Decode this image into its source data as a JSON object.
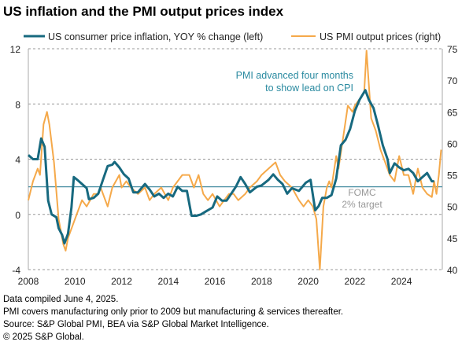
{
  "chart_data": {
    "type": "line",
    "title": "US inflation and the PMI output prices index",
    "xlim": [
      2008,
      2025.75
    ],
    "x_ticks": [
      "2008",
      "2010",
      "2012",
      "2014",
      "2016",
      "2018",
      "2020",
      "2022",
      "2024"
    ],
    "y_left": {
      "lim": [
        -4,
        12
      ],
      "ticks": [
        "-4",
        "0",
        "4",
        "8",
        "12"
      ]
    },
    "y_right": {
      "lim": [
        40,
        75
      ],
      "ticks": [
        "40",
        "45",
        "50",
        "55",
        "60",
        "65",
        "70",
        "75"
      ]
    },
    "grid": "horizontal dashed",
    "legend_position": "top",
    "series": [
      {
        "name": "US consumer price inflation, YOY % change (left)",
        "axis": "left",
        "color": "#17697f",
        "x": [
          2008.0,
          2008.2,
          2008.4,
          2008.55,
          2008.7,
          2008.85,
          2009.0,
          2009.2,
          2009.3,
          2009.45,
          2009.55,
          2009.7,
          2009.85,
          2009.95,
          2010.1,
          2010.3,
          2010.5,
          2010.6,
          2010.8,
          2011.0,
          2011.2,
          2011.4,
          2011.6,
          2011.7,
          2011.9,
          2012.1,
          2012.3,
          2012.5,
          2012.7,
          2012.9,
          2013.0,
          2013.2,
          2013.4,
          2013.6,
          2013.8,
          2014.0,
          2014.2,
          2014.4,
          2014.6,
          2014.8,
          2015.0,
          2015.2,
          2015.4,
          2015.6,
          2015.9,
          2016.1,
          2016.3,
          2016.5,
          2016.7,
          2016.9,
          2017.1,
          2017.3,
          2017.5,
          2017.8,
          2018.0,
          2018.3,
          2018.5,
          2018.7,
          2018.9,
          2019.1,
          2019.3,
          2019.6,
          2019.9,
          2020.1,
          2020.3,
          2020.45,
          2020.6,
          2020.8,
          2021.0,
          2021.2,
          2021.4,
          2021.6,
          2021.8,
          2022.0,
          2022.2,
          2022.45,
          2022.6,
          2022.8,
          2023.0,
          2023.2,
          2023.4,
          2023.5,
          2023.7,
          2023.9,
          2024.1,
          2024.3,
          2024.5,
          2024.7,
          2024.9,
          2025.1,
          2025.3,
          2025.4
        ],
        "y": [
          4.3,
          4.0,
          4.0,
          5.5,
          4.9,
          1.0,
          0.0,
          -0.2,
          -1.0,
          -1.5,
          -2.1,
          -1.4,
          0.5,
          2.7,
          2.5,
          2.2,
          1.9,
          1.1,
          1.2,
          1.5,
          2.5,
          3.5,
          3.6,
          3.8,
          3.4,
          2.9,
          2.6,
          1.6,
          1.6,
          2.0,
          2.2,
          1.8,
          1.3,
          1.5,
          1.2,
          1.5,
          1.3,
          2.0,
          1.7,
          1.7,
          -0.1,
          -0.1,
          0.0,
          0.2,
          0.5,
          1.3,
          1.0,
          1.0,
          1.5,
          2.0,
          2.7,
          2.2,
          1.6,
          2.0,
          2.1,
          2.5,
          2.9,
          2.5,
          2.2,
          1.5,
          1.9,
          1.7,
          2.3,
          2.5,
          0.3,
          0.6,
          1.2,
          1.2,
          1.4,
          2.6,
          5.0,
          5.4,
          6.2,
          7.5,
          8.3,
          9.0,
          8.3,
          7.7,
          6.4,
          5.0,
          4.0,
          3.0,
          3.7,
          3.4,
          3.2,
          3.3,
          3.0,
          2.4,
          2.7,
          3.0,
          2.4,
          2.4
        ]
      },
      {
        "name": "US PMI output prices (right)",
        "axis": "right",
        "color": "#f5a94a",
        "x": [
          2008.0,
          2008.2,
          2008.4,
          2008.5,
          2008.65,
          2008.8,
          2008.9,
          2009.1,
          2009.3,
          2009.5,
          2009.6,
          2009.7,
          2009.9,
          2010.1,
          2010.3,
          2010.5,
          2010.8,
          2011.0,
          2011.1,
          2011.3,
          2011.4,
          2011.6,
          2011.9,
          2012.0,
          2012.2,
          2012.4,
          2012.7,
          2013.0,
          2013.2,
          2013.4,
          2013.7,
          2014.0,
          2014.2,
          2014.4,
          2014.6,
          2014.9,
          2015.1,
          2015.3,
          2015.5,
          2015.7,
          2015.9,
          2016.2,
          2016.4,
          2016.6,
          2016.8,
          2017.0,
          2017.3,
          2017.5,
          2017.8,
          2018.0,
          2018.3,
          2018.6,
          2018.8,
          2019.0,
          2019.3,
          2019.6,
          2019.8,
          2020.0,
          2020.2,
          2020.35,
          2020.5,
          2020.65,
          2020.8,
          2020.9,
          2021.0,
          2021.2,
          2021.3,
          2021.5,
          2021.7,
          2021.9,
          2022.0,
          2022.2,
          2022.4,
          2022.5,
          2022.7,
          2022.9,
          2023.1,
          2023.3,
          2023.5,
          2023.7,
          2023.9,
          2024.1,
          2024.3,
          2024.5,
          2024.7,
          2024.9,
          2025.1,
          2025.3,
          2025.4,
          2025.5,
          2025.6,
          2025.7
        ],
        "y": [
          51,
          54,
          56,
          55,
          63,
          65,
          63,
          57,
          48,
          44,
          43,
          45,
          47,
          49,
          51,
          50,
          52,
          52,
          53,
          51,
          50,
          53,
          55,
          53,
          54,
          53,
          52,
          53,
          51,
          52,
          53,
          51,
          53,
          54,
          55,
          55,
          53,
          55,
          52,
          51,
          52,
          50,
          51,
          52,
          52,
          51,
          52,
          53,
          54,
          55,
          56,
          57,
          55,
          54,
          53,
          51,
          50,
          51,
          50,
          48,
          40,
          50,
          53,
          54,
          53,
          58,
          56,
          61,
          66,
          65,
          66,
          67,
          68,
          74.7,
          64,
          62,
          59,
          57,
          55,
          54,
          58,
          55,
          55,
          52,
          56,
          53,
          52,
          51.5,
          54,
          52,
          55,
          59
        ]
      }
    ],
    "reference_line": {
      "value": 2,
      "axis": "left",
      "label_1": "FOMC",
      "label_2": "2% target"
    },
    "annotation": {
      "line_1": "PMI advanced four months",
      "line_2": "to show lead on CPI"
    }
  },
  "footer": [
    "Data compiled June 4, 2025.",
    "PMI covers manufacturing only prior to 2009 but manufacturing & services thereafter.",
    "Source: S&P Global PMI, BEA via S&P Global Market Intelligence.",
    "© 2025 S&P Global."
  ]
}
